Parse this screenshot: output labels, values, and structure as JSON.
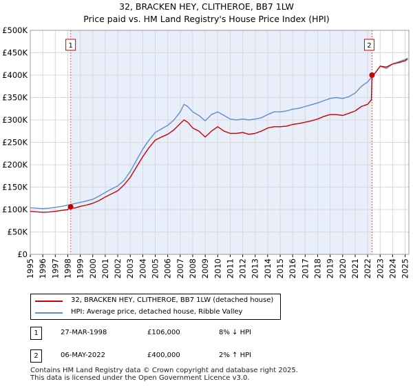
{
  "chart_data": {
    "type": "line",
    "title": "32, BRACKEN HEY, CLITHEROE, BB7 1LW",
    "subtitle": "Price paid vs. HM Land Registry's House Price Index (HPI)",
    "xlabel": "",
    "ylabel": "",
    "xlim": [
      1995.0,
      2025.3
    ],
    "ylim": [
      0,
      500000
    ],
    "y_ticks": [
      0,
      50000,
      100000,
      150000,
      200000,
      250000,
      300000,
      350000,
      400000,
      450000,
      500000
    ],
    "y_tick_labels": [
      "£0",
      "£50K",
      "£100K",
      "£150K",
      "£200K",
      "£250K",
      "£300K",
      "£350K",
      "£400K",
      "£450K",
      "£500K"
    ],
    "x_tick_labels": [
      "1995",
      "1996",
      "1997",
      "1998",
      "1999",
      "2000",
      "2001",
      "2002",
      "2003",
      "2004",
      "2005",
      "2006",
      "2007",
      "2008",
      "2009",
      "2010",
      "2011",
      "2012",
      "2013",
      "2014",
      "2015",
      "2016",
      "2017",
      "2018",
      "2019",
      "2020",
      "2021",
      "2022",
      "2023",
      "2024",
      "2025"
    ],
    "grid": true,
    "shaded_regions": [
      [
        1998.23,
        2022.35
      ]
    ],
    "series": [
      {
        "name": "32, BRACKEN HEY, CLITHEROE, BB7 1LW (detached house)",
        "color": "#cc0000",
        "x": [
          1995.0,
          1995.5,
          1996.0,
          1996.5,
          1997.0,
          1997.5,
          1998.0,
          1998.23,
          1998.5,
          1999.0,
          1999.5,
          2000.0,
          2000.5,
          2001.0,
          2001.5,
          2002.0,
          2002.5,
          2003.0,
          2003.5,
          2004.0,
          2004.5,
          2005.0,
          2005.5,
          2006.0,
          2006.5,
          2007.0,
          2007.3,
          2007.6,
          2008.0,
          2008.5,
          2009.0,
          2009.5,
          2010.0,
          2010.5,
          2011.0,
          2011.5,
          2012.0,
          2012.5,
          2013.0,
          2013.5,
          2014.0,
          2014.5,
          2015.0,
          2015.5,
          2016.0,
          2016.5,
          2017.0,
          2017.5,
          2018.0,
          2018.5,
          2019.0,
          2019.5,
          2020.0,
          2020.5,
          2021.0,
          2021.5,
          2022.0,
          2022.3,
          2022.35,
          2022.6,
          2023.0,
          2023.5,
          2024.0,
          2024.5,
          2025.0,
          2025.2
        ],
        "values": [
          96000,
          95000,
          94000,
          94500,
          96000,
          98000,
          100000,
          106000,
          103000,
          107000,
          110000,
          114000,
          120000,
          128000,
          135000,
          142000,
          155000,
          172000,
          195000,
          218000,
          238000,
          255000,
          262000,
          268000,
          278000,
          292000,
          300000,
          295000,
          282000,
          275000,
          262000,
          275000,
          285000,
          275000,
          270000,
          270000,
          272000,
          268000,
          270000,
          275000,
          282000,
          285000,
          285000,
          286000,
          290000,
          292000,
          295000,
          298000,
          302000,
          308000,
          312000,
          312000,
          310000,
          315000,
          320000,
          330000,
          335000,
          345000,
          400000,
          405000,
          420000,
          418000,
          425000,
          428000,
          432000,
          436000
        ]
      },
      {
        "name": "HPI: Average price, detached house, Ribble Valley",
        "color": "#5b8fd4",
        "x": [
          1995.0,
          1995.5,
          1996.0,
          1996.5,
          1997.0,
          1997.5,
          1998.0,
          1998.5,
          1999.0,
          1999.5,
          2000.0,
          2000.5,
          2001.0,
          2001.5,
          2002.0,
          2002.5,
          2003.0,
          2003.5,
          2004.0,
          2004.5,
          2005.0,
          2005.5,
          2006.0,
          2006.5,
          2007.0,
          2007.3,
          2007.6,
          2008.0,
          2008.5,
          2009.0,
          2009.5,
          2010.0,
          2010.5,
          2011.0,
          2011.5,
          2012.0,
          2012.5,
          2013.0,
          2013.5,
          2014.0,
          2014.5,
          2015.0,
          2015.5,
          2016.0,
          2016.5,
          2017.0,
          2017.5,
          2018.0,
          2018.5,
          2019.0,
          2019.5,
          2020.0,
          2020.5,
          2021.0,
          2021.5,
          2022.0,
          2022.3,
          2022.6,
          2023.0,
          2023.5,
          2024.0,
          2024.5,
          2025.0,
          2025.2
        ],
        "values": [
          104000,
          103000,
          102000,
          103000,
          105000,
          107000,
          110000,
          113000,
          116000,
          119000,
          123000,
          130000,
          138000,
          146000,
          153000,
          165000,
          185000,
          210000,
          235000,
          255000,
          272000,
          280000,
          288000,
          300000,
          318000,
          335000,
          330000,
          318000,
          310000,
          298000,
          312000,
          318000,
          310000,
          302000,
          300000,
          302000,
          300000,
          302000,
          305000,
          312000,
          318000,
          318000,
          320000,
          324000,
          326000,
          330000,
          334000,
          338000,
          343000,
          348000,
          350000,
          348000,
          352000,
          360000,
          375000,
          385000,
          395000,
          405000,
          420000,
          415000,
          425000,
          430000,
          435000,
          438000
        ]
      }
    ],
    "annotations": [
      {
        "label": "1",
        "x": 1998.23,
        "y": 106000
      },
      {
        "label": "2",
        "x": 2022.35,
        "y": 400000
      }
    ]
  },
  "legend": [
    {
      "label": "32, BRACKEN HEY, CLITHEROE, BB7 1LW (detached house)",
      "color": "#cc0000"
    },
    {
      "label": "HPI: Average price, detached house, Ribble Valley",
      "color": "#5b8fd4"
    }
  ],
  "transactions": [
    {
      "num": "1",
      "date": "27-MAR-1998",
      "price": "£106,000",
      "hpi": "8% ↓ HPI"
    },
    {
      "num": "2",
      "date": "06-MAY-2022",
      "price": "£400,000",
      "hpi": "2% ↑ HPI"
    }
  ],
  "footer": {
    "line1": "Contains HM Land Registry data © Crown copyright and database right 2025.",
    "line2": "This data is licensed under the Open Government Licence v3.0."
  }
}
